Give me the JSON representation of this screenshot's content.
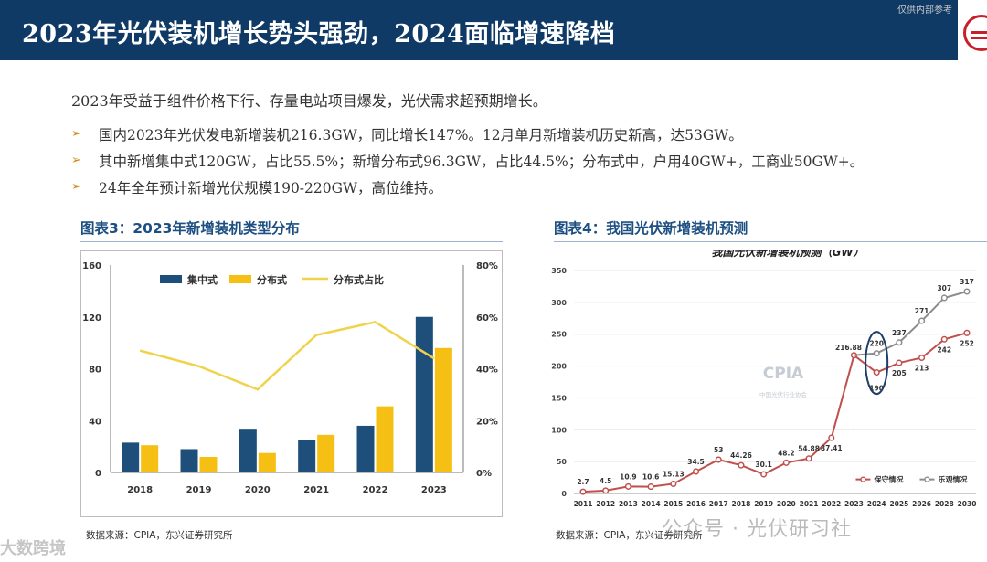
{
  "header": {
    "title": "2023年光伏装机增长势头强劲，2024面临增速降档",
    "watermark": "仅供内部参考"
  },
  "intro": "2023年受益于组件价格下行、存量电站项目爆发，光伏需求超预期增长。",
  "bullets": [
    "国内2023年光伏发电新增装机216.3GW，同比增长147%。12月单月新增装机历史新高，达53GW。",
    "其中新增集中式120GW，占比55.5%；新增分布式96.3GW，占比44.5%；分布式中，户用40GW+，工商业50GW+。",
    "24年全年预计新增光伏规模190-220GW，高位维持。"
  ],
  "figure3": {
    "title": "图表3：2023年新增装机类型分布",
    "source": "数据来源：CPIA，东兴证券研究所"
  },
  "figure4": {
    "title": "图表4：我国光伏新增装机预测",
    "source": "数据来源：CPIA，东兴证券研究所"
  },
  "watermarks": {
    "bottom_left": "大数跨境",
    "bottom_right": "公众号 · 光伏研习社"
  },
  "colors": {
    "header": "#0f3a66",
    "centralized": "#1d4f7a",
    "distributed": "#f6bf13",
    "share_line": "#f0d34a",
    "forecast_red": "#c0504d",
    "forecast_gray": "#8c8c8c"
  },
  "chart_data": [
    {
      "type": "bar",
      "title": "",
      "categories": [
        "2018",
        "2019",
        "2020",
        "2021",
        "2022",
        "2023"
      ],
      "series": [
        {
          "name": "集中式",
          "type": "bar",
          "axis": "left",
          "values": [
            23,
            18,
            33,
            25,
            36,
            120
          ]
        },
        {
          "name": "分布式",
          "type": "bar",
          "axis": "left",
          "values": [
            21,
            12,
            15,
            29,
            51,
            96
          ]
        },
        {
          "name": "分布式占比",
          "type": "line",
          "axis": "right",
          "values": [
            47,
            41,
            32,
            53,
            58,
            44
          ]
        }
      ],
      "ylim": [
        0,
        160
      ],
      "yticks": [
        "0",
        "40",
        "80",
        "120",
        "160"
      ],
      "y2lim": [
        0,
        80
      ],
      "y2ticks": [
        "0%",
        "20%",
        "40%",
        "60%",
        "80%"
      ],
      "legend": "top-left"
    },
    {
      "type": "line",
      "title": "我国光伏新增装机预测（GW）",
      "x": [
        "2011",
        "2012",
        "2013",
        "2014",
        "2015",
        "2016",
        "2017",
        "2018",
        "2019",
        "2020",
        "2021",
        "2022",
        "2023",
        "2024",
        "2025",
        "2026",
        "2028",
        "2030"
      ],
      "series": [
        {
          "name": "保守情况",
          "values": [
            2.7,
            4.5,
            10.9,
            10.6,
            15.13,
            34.5,
            53,
            44.26,
            30.1,
            48.2,
            54.88,
            87.41,
            216.88,
            190,
            205,
            213,
            242,
            252
          ],
          "labels": [
            "2.7",
            "4.5",
            "10.9",
            "10.6",
            "15.13",
            "34.5",
            "53",
            "44.26",
            "30.1",
            "48.2",
            "54.88",
            "87.41",
            "216.88",
            "190",
            "205",
            "213",
            "242",
            "252"
          ]
        },
        {
          "name": "乐观情况",
          "values": [
            null,
            null,
            null,
            null,
            null,
            null,
            null,
            null,
            null,
            null,
            null,
            null,
            216.88,
            220,
            237,
            271,
            307,
            317
          ],
          "labels": [
            "",
            "",
            "",
            "",
            "",
            "",
            "",
            "",
            "",
            "",
            "",
            "",
            "",
            "220",
            "237",
            "271",
            "307",
            "317"
          ]
        }
      ],
      "ylim": [
        0,
        350
      ],
      "yticks": [
        "0",
        "50",
        "100",
        "150",
        "200",
        "250",
        "300",
        "350"
      ],
      "legend": "bottom-right",
      "watermark_text": "CPIA",
      "watermark_subtext": "中国光伏行业协会"
    }
  ]
}
